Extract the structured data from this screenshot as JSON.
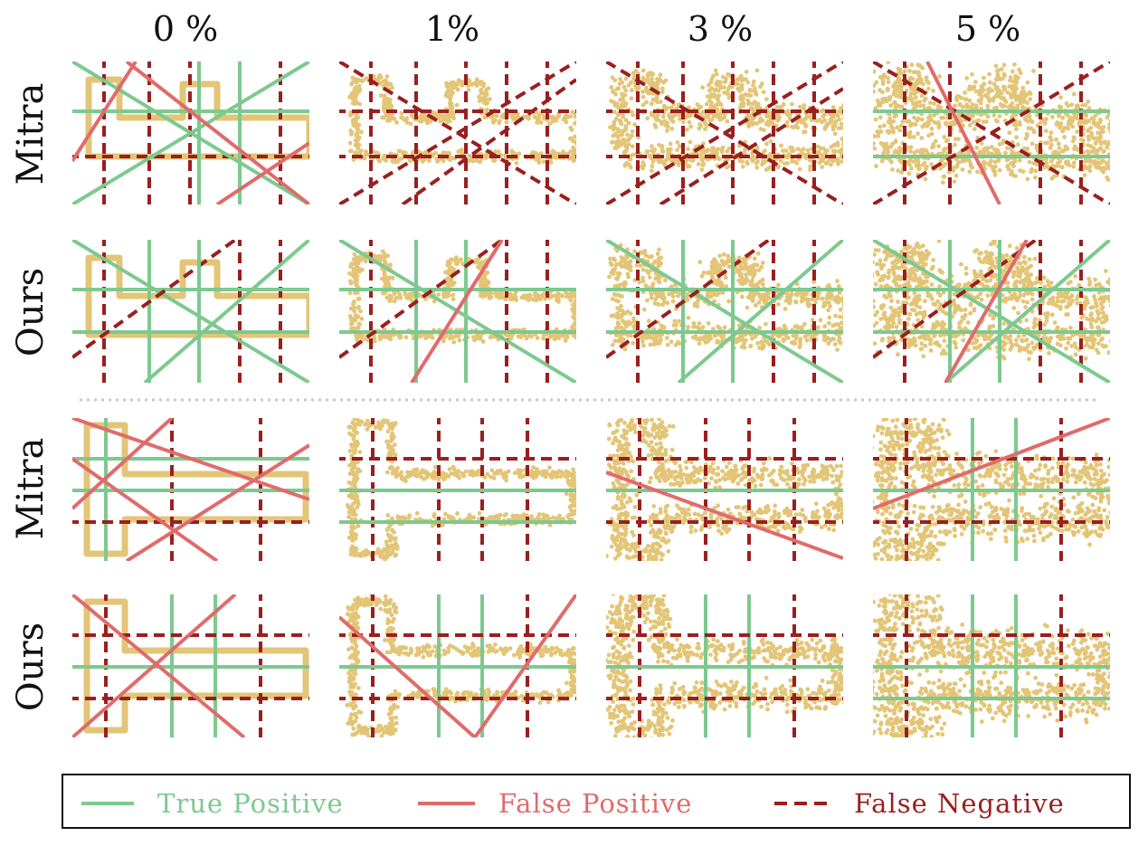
{
  "column_headers": [
    "0 %",
    "1%",
    "3 %",
    "5 %"
  ],
  "row_labels": [
    "Mitra",
    "Ours",
    "Mitra",
    "Ours"
  ],
  "legend": {
    "true_positive": "True Positive",
    "false_positive": "False Positive",
    "false_negative": "False Negative"
  },
  "colors": {
    "true_positive": "#7dc98f",
    "false_positive": "#e06b6b",
    "false_negative": "#9a1f1f",
    "points": "#e3c577"
  },
  "shapes": [
    "E-shape",
    "T-shape"
  ],
  "noise_levels": [
    0,
    1,
    3,
    5
  ]
}
